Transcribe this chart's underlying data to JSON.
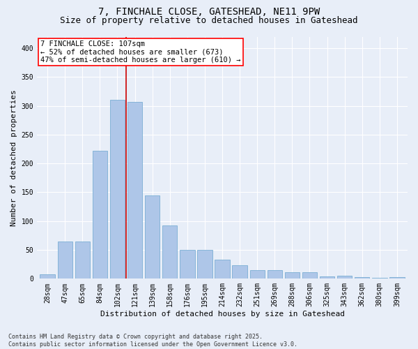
{
  "title": "7, FINCHALE CLOSE, GATESHEAD, NE11 9PW",
  "subtitle": "Size of property relative to detached houses in Gateshead",
  "xlabel": "Distribution of detached houses by size in Gateshead",
  "ylabel": "Number of detached properties",
  "categories": [
    "28sqm",
    "47sqm",
    "65sqm",
    "84sqm",
    "102sqm",
    "121sqm",
    "139sqm",
    "158sqm",
    "176sqm",
    "195sqm",
    "214sqm",
    "232sqm",
    "251sqm",
    "269sqm",
    "288sqm",
    "306sqm",
    "325sqm",
    "343sqm",
    "362sqm",
    "380sqm",
    "399sqm"
  ],
  "values": [
    8,
    65,
    65,
    222,
    310,
    307,
    145,
    92,
    50,
    50,
    33,
    24,
    15,
    15,
    11,
    11,
    4,
    5,
    3,
    2,
    3
  ],
  "bar_color": "#aec6e8",
  "bar_edge_color": "#7aafd4",
  "vline_x": 4.5,
  "vline_color": "#cc0000",
  "annotation_line1": "7 FINCHALE CLOSE: 107sqm",
  "annotation_line2": "← 52% of detached houses are smaller (673)",
  "annotation_line3": "47% of semi-detached houses are larger (610) →",
  "annotation_box_color": "white",
  "annotation_box_edge_color": "red",
  "ylim": [
    0,
    420
  ],
  "yticks": [
    0,
    50,
    100,
    150,
    200,
    250,
    300,
    350,
    400
  ],
  "bg_color": "#e8eef8",
  "plot_bg_color": "#e8eef8",
  "grid_color": "white",
  "footer": "Contains HM Land Registry data © Crown copyright and database right 2025.\nContains public sector information licensed under the Open Government Licence v3.0.",
  "title_fontsize": 10,
  "subtitle_fontsize": 9,
  "axis_label_fontsize": 8,
  "tick_fontsize": 7,
  "annotation_fontsize": 7.5,
  "footer_fontsize": 6
}
